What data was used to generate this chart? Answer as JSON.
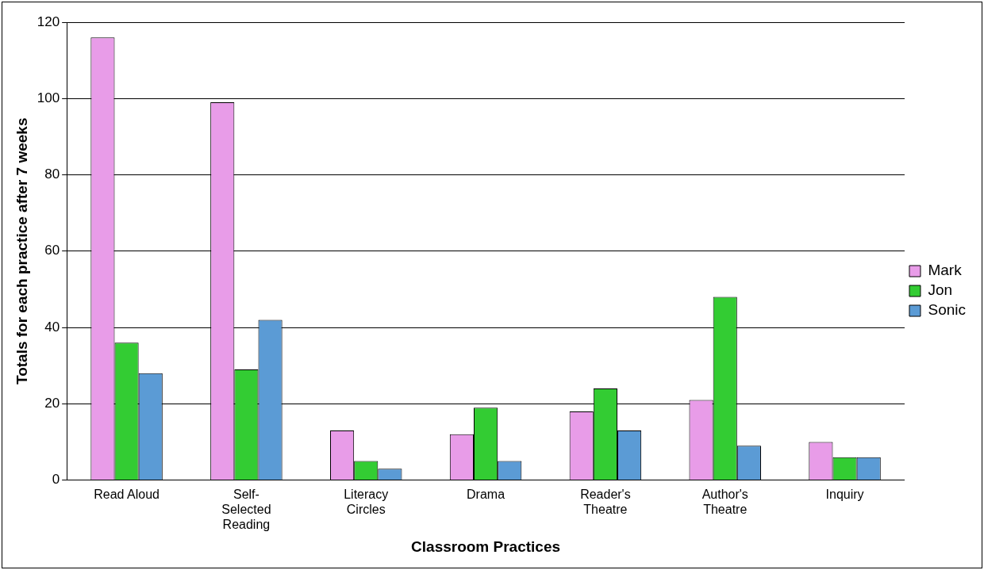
{
  "chart_data": {
    "type": "bar",
    "xlabel": "Classroom Practices",
    "ylabel": "Totals for each practice after 7 weeks",
    "categories": [
      "Read Aloud",
      "Self-Selected Reading",
      "Literacy Circles",
      "Drama",
      "Reader's Theatre",
      "Author's Theatre",
      "Inquiry"
    ],
    "series": [
      {
        "name": "Mark",
        "color": "#e89ce8",
        "values": [
          116,
          99,
          13,
          12,
          18,
          21,
          10
        ]
      },
      {
        "name": "Jon",
        "color": "#33cc33",
        "values": [
          36,
          29,
          5,
          19,
          24,
          48,
          6
        ]
      },
      {
        "name": "Sonic",
        "color": "#5b9bd5",
        "values": [
          28,
          42,
          3,
          5,
          13,
          9,
          6
        ]
      }
    ],
    "ylim": [
      0,
      120
    ],
    "yticks": [
      0,
      20,
      40,
      60,
      80,
      100,
      120
    ],
    "grid": "y",
    "legend": "right"
  }
}
